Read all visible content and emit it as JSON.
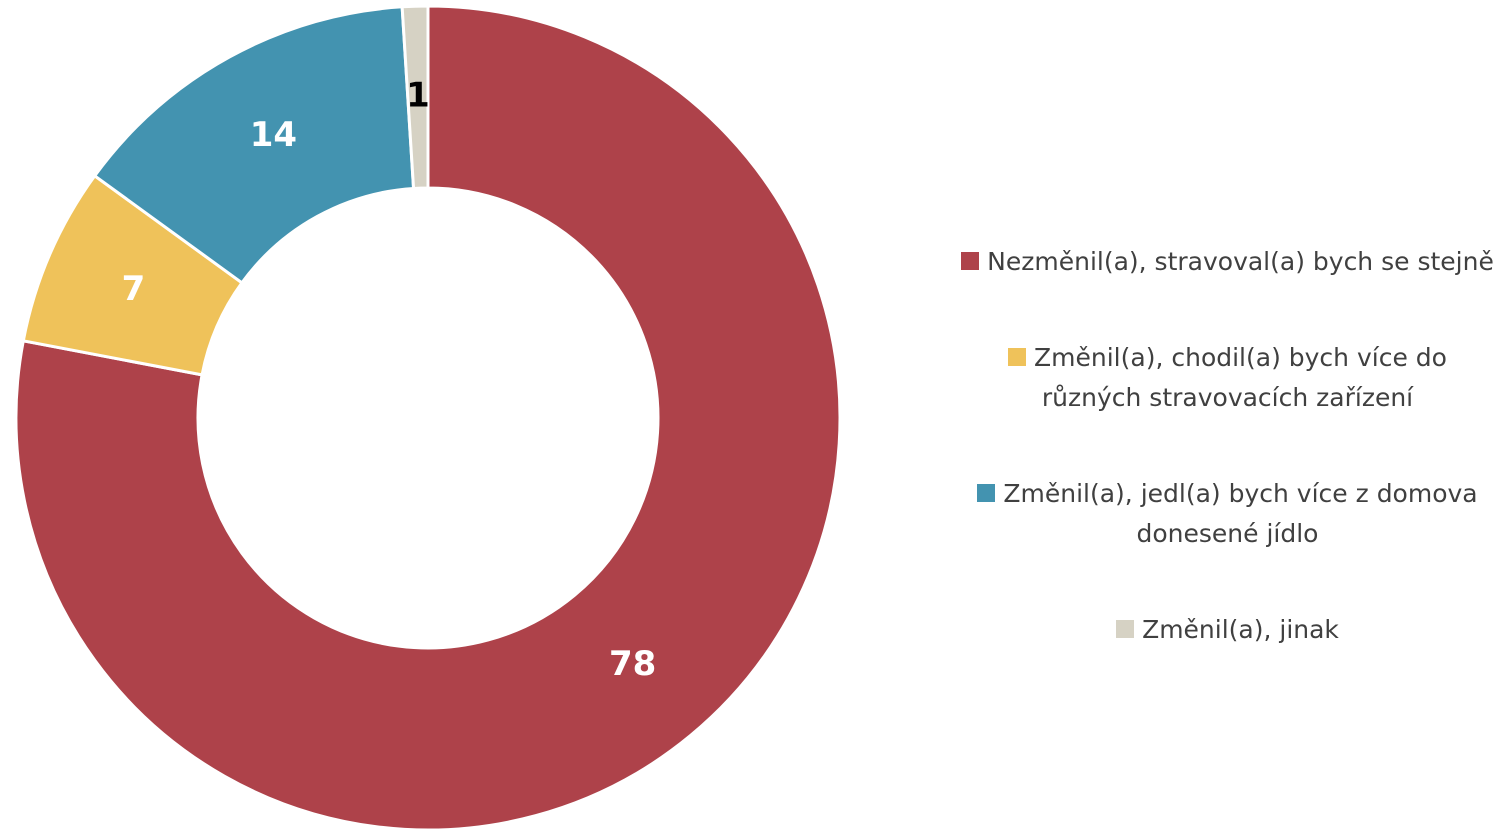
{
  "chart_data": {
    "type": "donut",
    "categories": [
      "Nezměnil(a), stravoval(a) bych se stejně",
      "Změnil(a), chodil(a) bych více do různých stravovacích zařízení",
      "Změnil(a), jedl(a) bych více z domova donesené jídlo",
      "Změnil(a), jinak"
    ],
    "values": [
      78,
      7,
      14,
      1
    ],
    "colors": [
      "#ae424a",
      "#efc25a",
      "#4393b0",
      "#d6d2c4"
    ],
    "label_colors": [
      "#ffffff",
      "#ffffff",
      "#ffffff",
      "#000000"
    ],
    "legend": "right"
  }
}
